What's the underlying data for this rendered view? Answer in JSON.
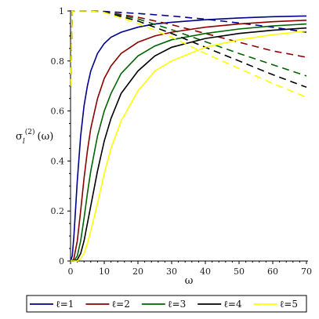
{
  "chart_data": {
    "type": "line",
    "xlabel": "ω",
    "ylabel": "σ",
    "ylabel_sub": "l",
    "ylabel_sup": "(2)",
    "ylabel_arg": "(ω)",
    "xlim": [
      0,
      70
    ],
    "ylim": [
      0,
      1
    ],
    "x_ticks": [
      0,
      10,
      20,
      30,
      40,
      50,
      60,
      70
    ],
    "y_ticks": [
      0,
      0.2,
      0.4,
      0.6,
      0.8,
      1
    ],
    "x_tick_labels": [
      "0",
      "10",
      "20",
      "30",
      "40",
      "50",
      "60",
      "70"
    ],
    "y_tick_labels": [
      "0",
      "0.2",
      "0.4",
      "0.6",
      "0.8",
      "1"
    ],
    "legend_position": "bottom",
    "series": [
      {
        "name": "ℓ=1",
        "color": "#00008b",
        "solid": {
          "x": [
            0,
            0.5,
            1,
            2,
            3,
            4,
            5,
            6,
            8,
            10,
            12,
            15,
            20,
            25,
            30,
            40,
            50,
            60,
            70
          ],
          "y": [
            0,
            0.02,
            0.1,
            0.32,
            0.5,
            0.62,
            0.7,
            0.76,
            0.83,
            0.87,
            0.895,
            0.915,
            0.935,
            0.948,
            0.955,
            0.965,
            0.972,
            0.977,
            0.98
          ]
        },
        "dashed": {
          "x": [
            0,
            0.5,
            1,
            2,
            5,
            10,
            20,
            30,
            40,
            50,
            60,
            70
          ],
          "y": [
            0.7,
            1.0,
            1.0,
            1.0,
            1.0,
            0.998,
            0.99,
            0.98,
            0.967,
            0.952,
            0.935,
            0.915
          ]
        }
      },
      {
        "name": "ℓ=2",
        "color": "#8b0000",
        "solid": {
          "x": [
            0,
            0.5,
            1,
            2,
            3,
            4,
            5,
            6,
            8,
            10,
            12,
            15,
            20,
            25,
            30,
            40,
            50,
            60,
            70
          ],
          "y": [
            0,
            0,
            0.01,
            0.08,
            0.2,
            0.33,
            0.44,
            0.53,
            0.65,
            0.73,
            0.78,
            0.83,
            0.875,
            0.9,
            0.915,
            0.935,
            0.948,
            0.957,
            0.963
          ]
        },
        "dashed": {
          "x": [
            0,
            0.5,
            1,
            2,
            5,
            10,
            20,
            30,
            40,
            50,
            60,
            70
          ],
          "y": [
            0.7,
            1.0,
            1.0,
            1.0,
            1.0,
            0.997,
            0.975,
            0.945,
            0.91,
            0.875,
            0.84,
            0.815
          ]
        }
      },
      {
        "name": "ℓ=3",
        "color": "#006400",
        "solid": {
          "x": [
            0,
            1,
            2,
            3,
            4,
            5,
            6,
            8,
            10,
            12,
            15,
            20,
            25,
            30,
            40,
            50,
            60,
            70
          ],
          "y": [
            0,
            0,
            0.02,
            0.08,
            0.17,
            0.27,
            0.36,
            0.5,
            0.6,
            0.67,
            0.75,
            0.82,
            0.86,
            0.885,
            0.91,
            0.928,
            0.94,
            0.948
          ]
        },
        "dashed": {
          "x": [
            0,
            0.5,
            1,
            2,
            5,
            10,
            20,
            30,
            40,
            50,
            60,
            70
          ],
          "y": [
            0.7,
            1.0,
            1.0,
            1.0,
            1.0,
            0.996,
            0.968,
            0.925,
            0.877,
            0.83,
            0.785,
            0.74
          ]
        }
      },
      {
        "name": "ℓ=4",
        "color": "#000000",
        "solid": {
          "x": [
            0,
            1,
            2,
            3,
            4,
            5,
            6,
            8,
            10,
            12,
            15,
            20,
            25,
            30,
            40,
            50,
            60,
            70
          ],
          "y": [
            0,
            0,
            0.005,
            0.03,
            0.08,
            0.15,
            0.22,
            0.36,
            0.48,
            0.57,
            0.67,
            0.76,
            0.82,
            0.855,
            0.89,
            0.91,
            0.923,
            0.932
          ]
        },
        "dashed": {
          "x": [
            0,
            0.5,
            1,
            2,
            5,
            10,
            20,
            30,
            40,
            50,
            60,
            70
          ],
          "y": [
            0.7,
            1.0,
            1.0,
            1.0,
            1.0,
            0.995,
            0.96,
            0.91,
            0.855,
            0.8,
            0.745,
            0.695
          ]
        }
      },
      {
        "name": "ℓ=5",
        "color": "#ffff00",
        "solid": {
          "x": [
            0,
            1,
            2,
            3,
            4,
            5,
            6,
            8,
            10,
            12,
            15,
            20,
            25,
            30,
            40,
            50,
            60,
            70
          ],
          "y": [
            0,
            0,
            0,
            0.01,
            0.03,
            0.07,
            0.12,
            0.23,
            0.35,
            0.45,
            0.56,
            0.68,
            0.76,
            0.8,
            0.855,
            0.885,
            0.905,
            0.92
          ]
        },
        "dashed": {
          "x": [
            0,
            0.5,
            1,
            2,
            5,
            10,
            20,
            30,
            40,
            50,
            60,
            70
          ],
          "y": [
            0.7,
            1.0,
            1.0,
            1.0,
            1.0,
            0.994,
            0.95,
            0.895,
            0.83,
            0.77,
            0.71,
            0.655
          ]
        }
      }
    ]
  }
}
